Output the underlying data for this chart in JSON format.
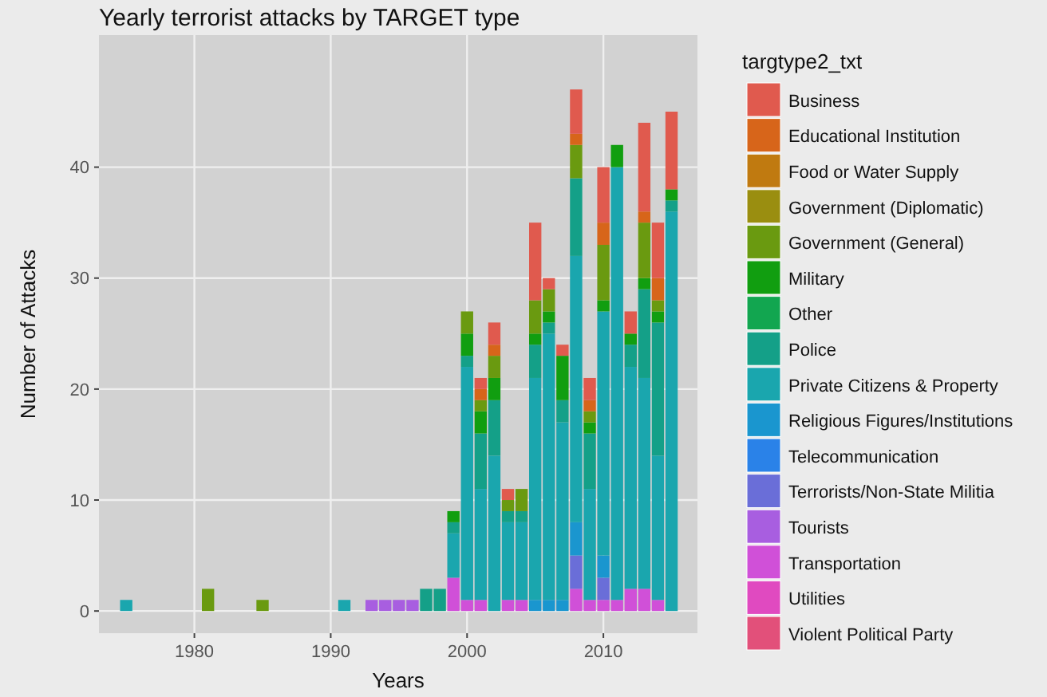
{
  "chart_data": {
    "type": "bar",
    "stacked": true,
    "title": "Yearly terrorist attacks by TARGET type",
    "xlabel": "Years",
    "ylabel": "Number of Attacks",
    "legend_title": "targtype2_txt",
    "legend": "right",
    "grid": true,
    "x": [
      1975,
      1981,
      1985,
      1991,
      1993,
      1994,
      1995,
      1996,
      1997,
      1998,
      1999,
      2000,
      2001,
      2002,
      2003,
      2004,
      2005,
      2006,
      2007,
      2008,
      2009,
      2010,
      2011,
      2012,
      2013,
      2014,
      2015
    ],
    "xlim": [
      1973,
      2016.9
    ],
    "xticks": [
      1980,
      1990,
      2000,
      2010
    ],
    "ylim": [
      -2,
      51.9
    ],
    "yticks": [
      0,
      10,
      20,
      30,
      40
    ],
    "series": [
      {
        "name": "Violent Political Party",
        "color": "#e2507a",
        "values": [
          0,
          0,
          0,
          0,
          0,
          0,
          0,
          0,
          0,
          0,
          0,
          0,
          0,
          0,
          0,
          0,
          0,
          0,
          0,
          0,
          0,
          0,
          0,
          0,
          0,
          0,
          0
        ]
      },
      {
        "name": "Utilities",
        "color": "#e04ac0",
        "values": [
          0,
          0,
          0,
          0,
          0,
          0,
          0,
          0,
          0,
          0,
          0,
          0,
          0,
          0,
          0,
          0,
          0,
          0,
          0,
          0,
          0,
          0,
          0,
          0,
          0,
          0,
          0
        ]
      },
      {
        "name": "Transportation",
        "color": "#d050d8",
        "values": [
          0,
          0,
          0,
          0,
          0,
          0,
          0,
          0,
          0,
          0,
          3,
          1,
          1,
          0,
          1,
          1,
          0,
          0,
          0,
          2,
          1,
          1,
          1,
          2,
          2,
          1,
          0
        ]
      },
      {
        "name": "Tourists",
        "color": "#a85ee0",
        "values": [
          0,
          0,
          0,
          0,
          1,
          1,
          1,
          1,
          0,
          0,
          0,
          0,
          0,
          0,
          0,
          0,
          0,
          0,
          0,
          0,
          0,
          0,
          0,
          0,
          0,
          0,
          0
        ]
      },
      {
        "name": "Terrorists/Non-State Militia",
        "color": "#6a6ed8",
        "values": [
          0,
          0,
          0,
          0,
          0,
          0,
          0,
          0,
          0,
          0,
          0,
          0,
          0,
          0,
          0,
          0,
          0,
          0,
          0,
          3,
          0,
          2,
          0,
          0,
          0,
          0,
          0
        ]
      },
      {
        "name": "Telecommunication",
        "color": "#2a82e8",
        "values": [
          0,
          0,
          0,
          0,
          0,
          0,
          0,
          0,
          0,
          0,
          0,
          0,
          0,
          0,
          0,
          0,
          0,
          0,
          0,
          0,
          0,
          0,
          0,
          0,
          0,
          0,
          0
        ]
      },
      {
        "name": "Religious Figures/Institutions",
        "color": "#1a96cf",
        "values": [
          0,
          0,
          0,
          0,
          0,
          0,
          0,
          0,
          0,
          0,
          0,
          0,
          0,
          0,
          0,
          0,
          1,
          1,
          1,
          3,
          0,
          2,
          0,
          0,
          0,
          0,
          0
        ]
      },
      {
        "name": "Private Citizens & Property",
        "color": "#1aa6ae",
        "values": [
          1,
          0,
          0,
          1,
          0,
          0,
          0,
          0,
          0,
          0,
          4,
          21,
          10,
          14,
          7,
          7,
          20,
          24,
          16,
          24,
          10,
          22,
          39,
          20,
          19,
          13,
          36
        ]
      },
      {
        "name": "Police",
        "color": "#14a088",
        "values": [
          0,
          0,
          0,
          0,
          0,
          0,
          0,
          0,
          2,
          2,
          1,
          1,
          5,
          5,
          1,
          1,
          3,
          1,
          2,
          7,
          5,
          0,
          0,
          2,
          8,
          12,
          1
        ]
      },
      {
        "name": "Other",
        "color": "#12a650",
        "values": [
          0,
          0,
          0,
          0,
          0,
          0,
          0,
          0,
          0,
          0,
          0,
          0,
          0,
          0,
          0,
          0,
          0,
          0,
          0,
          0,
          0,
          0,
          0,
          0,
          0,
          0,
          0
        ]
      },
      {
        "name": "Military",
        "color": "#119e10",
        "values": [
          0,
          0,
          0,
          0,
          0,
          0,
          0,
          0,
          0,
          0,
          1,
          2,
          2,
          2,
          0,
          0,
          1,
          1,
          4,
          0,
          1,
          1,
          2,
          1,
          1,
          1,
          1
        ]
      },
      {
        "name": "Government (General)",
        "color": "#6a9a10",
        "values": [
          0,
          2,
          1,
          0,
          0,
          0,
          0,
          0,
          0,
          0,
          0,
          2,
          1,
          2,
          1,
          2,
          3,
          2,
          0,
          3,
          1,
          5,
          0,
          0,
          5,
          1,
          0
        ]
      },
      {
        "name": "Government (Diplomatic)",
        "color": "#9a8e10",
        "values": [
          0,
          0,
          0,
          0,
          0,
          0,
          0,
          0,
          0,
          0,
          0,
          0,
          0,
          0,
          0,
          0,
          0,
          0,
          0,
          0,
          0,
          0,
          0,
          0,
          0,
          0,
          0
        ]
      },
      {
        "name": "Food or Water Supply",
        "color": "#c07a10",
        "values": [
          0,
          0,
          0,
          0,
          0,
          0,
          0,
          0,
          0,
          0,
          0,
          0,
          0,
          0,
          0,
          0,
          0,
          0,
          0,
          0,
          0,
          0,
          0,
          0,
          0,
          0,
          0
        ]
      },
      {
        "name": "Educational Institution",
        "color": "#d7651a",
        "values": [
          0,
          0,
          0,
          0,
          0,
          0,
          0,
          0,
          0,
          0,
          0,
          0,
          1,
          1,
          0,
          0,
          0,
          0,
          0,
          1,
          1,
          2,
          0,
          0,
          1,
          2,
          0
        ]
      },
      {
        "name": "Business",
        "color": "#e05a4e",
        "values": [
          0,
          0,
          0,
          0,
          0,
          0,
          0,
          0,
          0,
          0,
          0,
          0,
          1,
          2,
          1,
          0,
          7,
          1,
          1,
          4,
          2,
          5,
          0,
          2,
          8,
          5,
          7
        ]
      }
    ]
  }
}
